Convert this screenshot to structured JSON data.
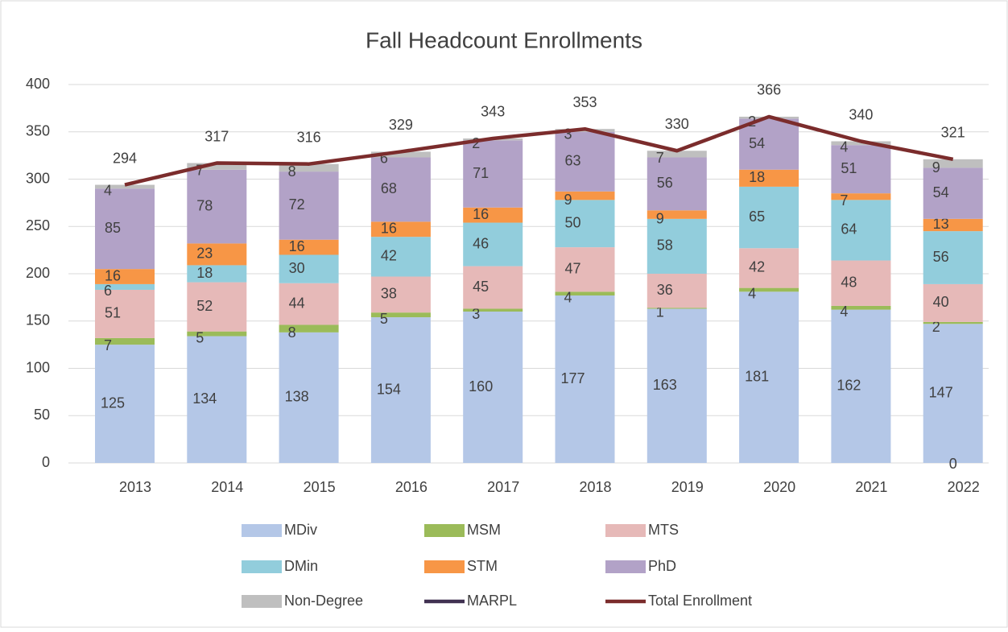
{
  "chart_data": {
    "type": "bar",
    "stacked": true,
    "title": "Fall Headcount Enrollments",
    "categories": [
      "2013",
      "2014",
      "2015",
      "2016",
      "2017",
      "2018",
      "2019",
      "2020",
      "2021",
      "2022"
    ],
    "series": [
      {
        "name": "MDiv",
        "color": "#b4c7e7",
        "values": [
          125,
          134,
          138,
          154,
          160,
          177,
          163,
          181,
          162,
          147
        ]
      },
      {
        "name": "MSM",
        "color": "#9bbb59",
        "values": [
          7,
          5,
          8,
          5,
          3,
          4,
          1,
          4,
          4,
          2
        ]
      },
      {
        "name": "MTS",
        "color": "#e6b9b8",
        "values": [
          51,
          52,
          44,
          38,
          45,
          47,
          36,
          42,
          48,
          40
        ]
      },
      {
        "name": "DMin",
        "color": "#92cddc",
        "values": [
          6,
          18,
          30,
          42,
          46,
          50,
          58,
          65,
          64,
          56
        ]
      },
      {
        "name": "STM",
        "color": "#f79646",
        "values": [
          16,
          23,
          16,
          16,
          16,
          9,
          9,
          18,
          7,
          13
        ]
      },
      {
        "name": "PhD",
        "color": "#b2a2c7",
        "values": [
          85,
          78,
          72,
          68,
          71,
          63,
          56,
          54,
          51,
          54
        ]
      },
      {
        "name": "Non-Degree",
        "color": "#bfbfbf",
        "values": [
          4,
          7,
          8,
          6,
          2,
          3,
          7,
          2,
          4,
          9
        ]
      },
      {
        "name": "MARPL",
        "color": "#403151",
        "type": "line",
        "values": [
          null,
          null,
          null,
          null,
          null,
          null,
          null,
          null,
          null,
          0
        ]
      },
      {
        "name": "Total Enrollment",
        "color": "#7b2c2c",
        "type": "line",
        "values": [
          294,
          317,
          316,
          329,
          343,
          353,
          330,
          366,
          340,
          321
        ]
      }
    ],
    "ylim": [
      0,
      400
    ],
    "yticks": [
      0,
      50,
      100,
      150,
      200,
      250,
      300,
      350,
      400
    ],
    "grid": true,
    "legend": "bottom"
  }
}
